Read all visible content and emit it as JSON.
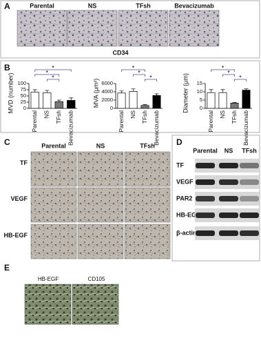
{
  "panel_a": {
    "label": "A",
    "columns": [
      "Parental",
      "NS",
      "TFsh",
      "Bevacizumab"
    ],
    "caption": "CD34"
  },
  "panel_b": {
    "label": "B"
  },
  "chart_data": [
    {
      "type": "bar",
      "ylabel": "MVD (number)",
      "categories": [
        "Parental",
        "NS",
        "TFsh",
        "Bevacizumab"
      ],
      "values": [
        65,
        63,
        27,
        32
      ],
      "errors": [
        10,
        9,
        6,
        10
      ],
      "colors": [
        "#ffffff",
        "#ffffff",
        "#777777",
        "#000000"
      ],
      "ylim": [
        0,
        100
      ],
      "yticks": [
        0,
        25,
        50,
        75,
        100
      ],
      "significance": [
        {
          "pair": [
            0,
            3
          ],
          "label": "*"
        },
        {
          "pair": [
            0,
            2
          ],
          "label": "*"
        },
        {
          "pair": [
            1,
            2
          ],
          "label": "*"
        }
      ]
    },
    {
      "type": "bar",
      "ylabel": "MVA (μm²)",
      "categories": [
        "Parental",
        "NS",
        "TFsh",
        "Bevacizumab"
      ],
      "values": [
        3700,
        4100,
        700,
        3100
      ],
      "errors": [
        500,
        600,
        200,
        400
      ],
      "colors": [
        "#ffffff",
        "#ffffff",
        "#777777",
        "#000000"
      ],
      "ylim": [
        0,
        6000
      ],
      "yticks": [
        0,
        2000,
        4000,
        6000
      ],
      "significance": [
        {
          "pair": [
            0,
            2
          ],
          "label": "*"
        },
        {
          "pair": [
            1,
            2
          ],
          "label": "*"
        },
        {
          "pair": [
            2,
            3
          ],
          "label": "*"
        }
      ]
    },
    {
      "type": "bar",
      "ylabel": "Diameter (μm)",
      "categories": [
        "Parental",
        "NS",
        "TFsh",
        "Bevacizumab"
      ],
      "values": [
        9.5,
        9.5,
        3.2,
        11
      ],
      "errors": [
        1.8,
        1.8,
        0.3,
        0.8
      ],
      "colors": [
        "#ffffff",
        "#ffffff",
        "#777777",
        "#000000"
      ],
      "ylim": [
        0,
        15
      ],
      "yticks": [
        0,
        5,
        10,
        15
      ],
      "significance": [
        {
          "pair": [
            0,
            2
          ],
          "label": "*"
        },
        {
          "pair": [
            1,
            2
          ],
          "label": "*"
        },
        {
          "pair": [
            2,
            3
          ],
          "label": "*"
        }
      ]
    }
  ],
  "panel_c": {
    "label": "C",
    "columns": [
      "Parental",
      "NS",
      "TFsh"
    ],
    "rows": [
      "TF",
      "VEGF",
      "HB-EGF"
    ]
  },
  "panel_d": {
    "label": "D",
    "columns": [
      "Parental",
      "NS",
      "TFsh"
    ],
    "rows": [
      "TF",
      "VEGF",
      "PAR2",
      "HB-EGF",
      "β-actin"
    ]
  },
  "panel_e": {
    "label": "E",
    "labels": [
      "HB-EGF",
      "CD105"
    ]
  }
}
